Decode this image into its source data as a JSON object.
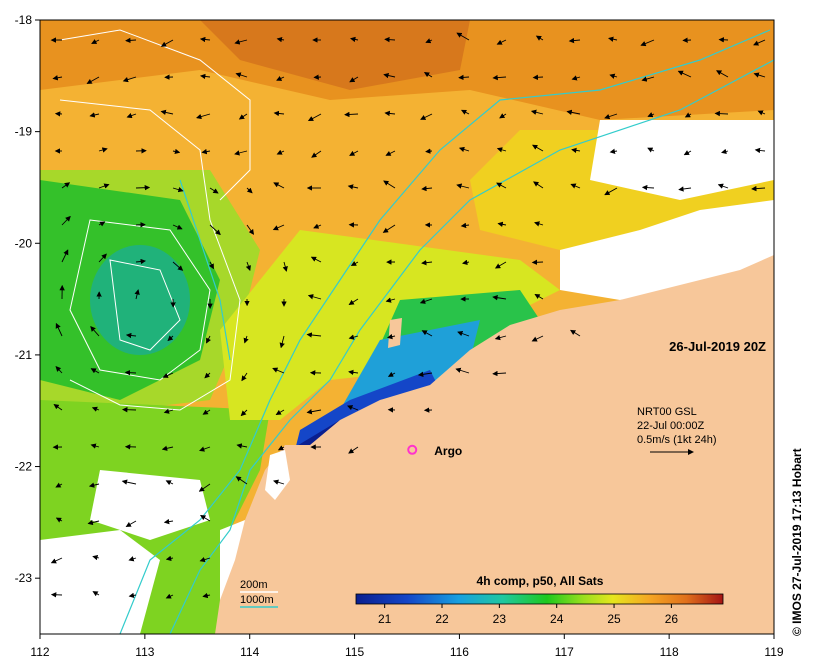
{
  "map": {
    "lon_range": [
      112,
      119
    ],
    "lat_range": [
      -23.5,
      -18
    ],
    "lon_ticks": [
      "112",
      "113",
      "114",
      "115",
      "116",
      "117",
      "118",
      "119"
    ],
    "lat_ticks": [
      "-18",
      "-19",
      "-20",
      "-21",
      "-22",
      "-23"
    ],
    "date_label": "26-Jul-2019 20Z",
    "current_info": {
      "line1": "NRT00 GSL",
      "line2": "22-Jul 00:00Z",
      "line3": "0.5m/s (1kt 24h)"
    },
    "argo_label": "Argo",
    "argo_lon": 115.55,
    "argo_lat": -21.85,
    "bathymetry_legend": {
      "line1": "200m",
      "line2": "1000m"
    },
    "colorbar": {
      "title": "4h comp, p50, All Sats",
      "range": [
        20.5,
        26.9
      ],
      "tick_labels": [
        "21",
        "22",
        "23",
        "24",
        "25",
        "26"
      ]
    },
    "credit": "© IMOS 27-Jul-2019 17:13 Hobart",
    "colors": {
      "land": "#f7c79a",
      "no_data": "#ffffff",
      "contour_200m": "#ffffff",
      "contour_1000m": "#33cccc",
      "argo_marker": "#ff33cc"
    }
  }
}
